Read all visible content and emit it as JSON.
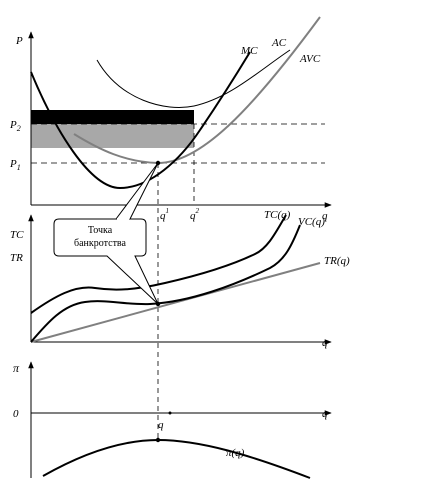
{
  "top_panel": {
    "y_axis_label": "P",
    "x_axis_label": "q",
    "price_labels": {
      "p2": "P2",
      "p1": "P1"
    },
    "quantity_labels": {
      "q1": "q",
      "q1_sup": "1",
      "q2": "q",
      "q2_sup": "2"
    },
    "curve_labels": {
      "mc": "MC",
      "ac": "AC",
      "avc": "AVC"
    }
  },
  "middle_panel": {
    "y_axis_label_1": "TC",
    "y_axis_label_2": "TR",
    "x_axis_label": "q",
    "curve_labels": {
      "tc": "TC(q)",
      "vc": "VC(q)",
      "tr": "TR(q)"
    },
    "callout": {
      "line1": "Точка",
      "line2": "банкротства"
    }
  },
  "bottom_panel": {
    "y_axis_label": "π",
    "zero_label": "0",
    "x_axis_label": "q",
    "q_marker_label": "q",
    "curve_label": "π(q)"
  },
  "colors": {
    "ink": "#000000",
    "gray_curve": "#808080",
    "loss_black": "#000000",
    "loss_gray": "#a8a8a8"
  }
}
